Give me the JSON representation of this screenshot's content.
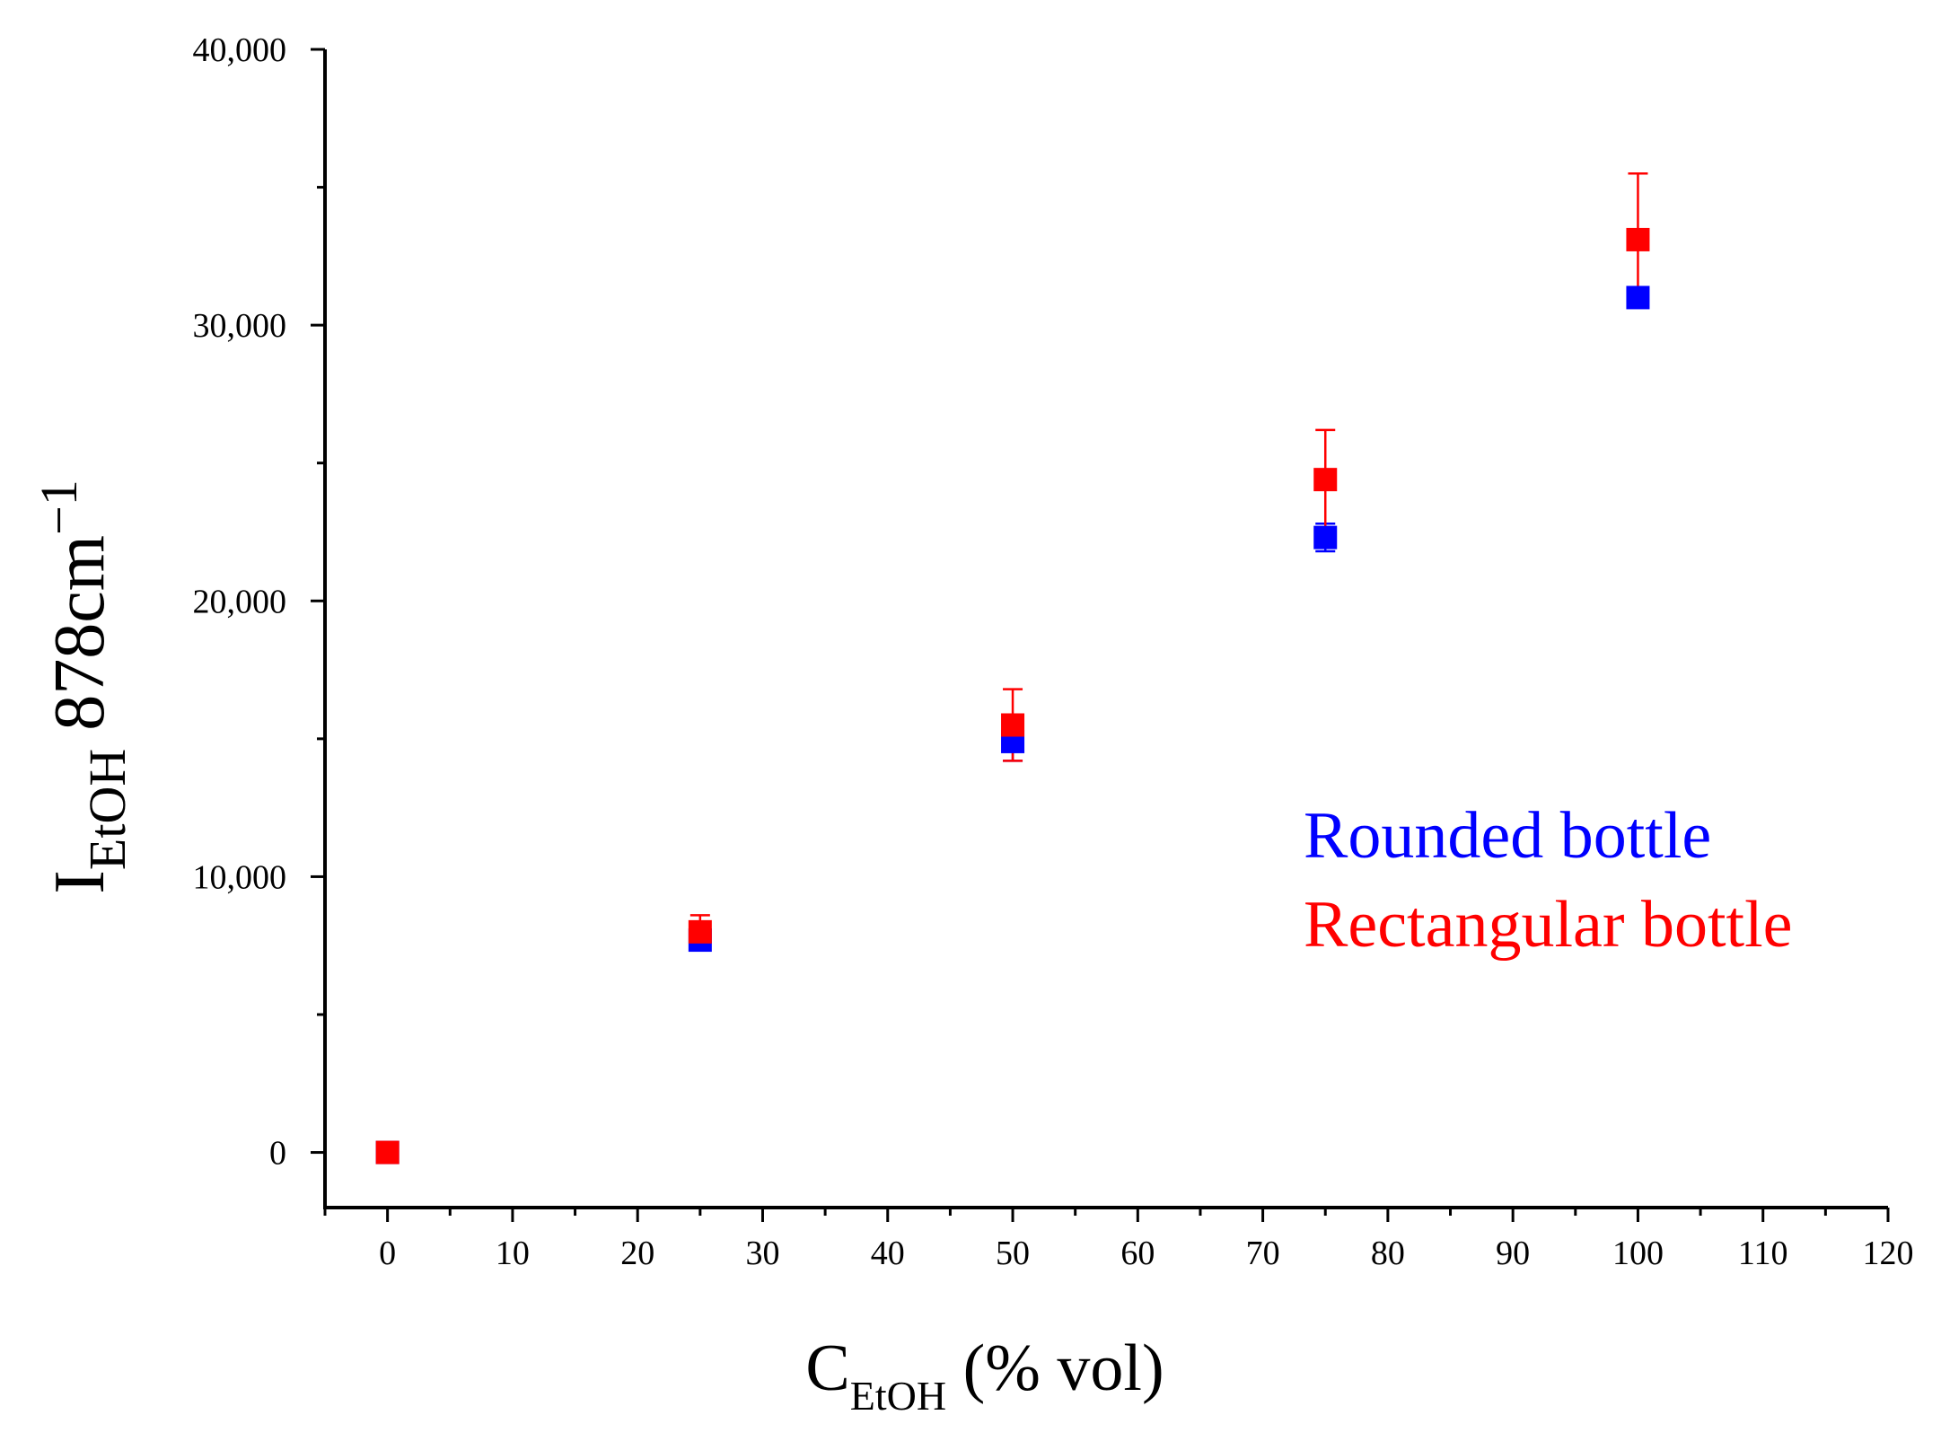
{
  "chart_data": {
    "type": "scatter",
    "title": "",
    "xlabel": {
      "main": "C",
      "sub": "EtOH",
      "rest": " (% vol)"
    },
    "ylabel": {
      "main": "I",
      "sub": "EtOH",
      "rest": " 878cm",
      "sup": "−1"
    },
    "xlim": [
      -5,
      120
    ],
    "ylim": [
      -2000,
      40000
    ],
    "x_ticks": [
      0,
      10,
      20,
      30,
      40,
      50,
      60,
      70,
      80,
      90,
      100,
      110,
      120
    ],
    "x_tick_labels": [
      "0",
      "10",
      "20",
      "30",
      "40",
      "50",
      "60",
      "70",
      "80",
      "90",
      "100",
      "110",
      "120"
    ],
    "y_ticks": [
      0,
      10000,
      20000,
      30000,
      40000
    ],
    "y_tick_labels": [
      "0",
      "10,000",
      "20,000",
      "30,000",
      "40,000"
    ],
    "y_minor_ticks": [
      5000,
      15000,
      25000,
      35000
    ],
    "series": [
      {
        "name": "Rounded bottle",
        "color": "#0000ff",
        "x": [
          0,
          25,
          50,
          75,
          100
        ],
        "y": [
          0,
          7700,
          14900,
          22300,
          31000
        ],
        "err": [
          0,
          300,
          700,
          500,
          200
        ]
      },
      {
        "name": "Rectangular bottle",
        "color": "#ff0000",
        "x": [
          0,
          25,
          50,
          75,
          100
        ],
        "y": [
          0,
          8000,
          15500,
          24400,
          33100
        ],
        "err": [
          0,
          600,
          1300,
          1800,
          2400
        ]
      }
    ],
    "legend": {
      "placement": "bottom-right",
      "entries": [
        "Rounded bottle",
        "Rectangular bottle"
      ]
    }
  }
}
